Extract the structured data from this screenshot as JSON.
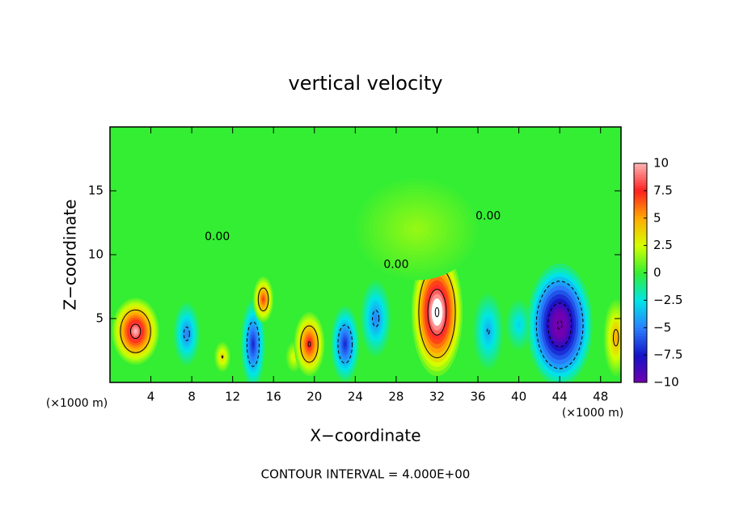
{
  "chart_data": {
    "type": "contour",
    "title": "vertical velocity",
    "x_label": "X−coordinate",
    "y_label": "Z−coordinate",
    "x_unit_label": "(×1000 m)",
    "footer": "CONTOUR INTERVAL = 4.000E+00",
    "contour_label": "0.00",
    "xlim": [
      0,
      50
    ],
    "xticks": [
      4,
      8,
      12,
      16,
      20,
      24,
      28,
      32,
      36,
      40,
      44,
      48
    ],
    "ylim": [
      0,
      20
    ],
    "yticks": [
      5,
      10,
      15
    ],
    "clim": [
      -10,
      10
    ],
    "cticks": [
      {
        "value": -10,
        "label": "−10"
      },
      {
        "value": -7.5,
        "label": "−7.5"
      },
      {
        "value": -5,
        "label": "−5"
      },
      {
        "value": -2.5,
        "label": "−2.5"
      },
      0,
      2.5,
      5,
      7.5,
      10
    ],
    "colors": [
      "#7000b0",
      "#1414c8",
      "#2a80ff",
      "#00e6e6",
      "#33ee33",
      "#d4ff00",
      "#ffaa00",
      "#ff2020",
      "#ffb4b4"
    ],
    "features": [
      {
        "x": 2.5,
        "z": 4,
        "rx": 2.3,
        "rz": 2.6,
        "value": 10
      },
      {
        "x": 7.5,
        "z": 3.8,
        "rx": 1.3,
        "rz": 2.5,
        "value": -5
      },
      {
        "x": 11,
        "z": 2,
        "rx": 0.8,
        "rz": 1.2,
        "value": 4
      },
      {
        "x": 14,
        "z": 3,
        "rx": 1.2,
        "rz": 3.5,
        "value": -7
      },
      {
        "x": 15,
        "z": 6.5,
        "rx": 1,
        "rz": 1.8,
        "value": 7
      },
      {
        "x": 18,
        "z": 2,
        "rx": 0.8,
        "rz": 1.2,
        "value": 3
      },
      {
        "x": 19.5,
        "z": 3,
        "rx": 1.5,
        "rz": 2.5,
        "value": 8
      },
      {
        "x": 23,
        "z": 3,
        "rx": 1.4,
        "rz": 3,
        "value": -7
      },
      {
        "x": 26,
        "z": 5,
        "rx": 1.5,
        "rz": 3,
        "value": -5
      },
      {
        "x": 32,
        "z": 5.5,
        "rx": 2.5,
        "rz": 5,
        "value": 12
      },
      {
        "x": 37,
        "z": 4,
        "rx": 1.5,
        "rz": 3,
        "value": -4
      },
      {
        "x": 40,
        "z": 4.5,
        "rx": 1.3,
        "rz": 2,
        "value": -3
      },
      {
        "x": 44,
        "z": 4.5,
        "rx": 3.2,
        "rz": 4.8,
        "value": -12
      },
      {
        "x": 49.5,
        "z": 3.5,
        "rx": 1.2,
        "rz": 3,
        "value": 5
      },
      {
        "x": 30,
        "z": 12,
        "rx": 6,
        "rz": 4,
        "value": 1.5
      }
    ],
    "contour_label_positions": [
      {
        "x": 10.5,
        "z": 11.4
      },
      {
        "x": 28,
        "z": 9.2
      },
      {
        "x": 37,
        "z": 13
      }
    ]
  }
}
